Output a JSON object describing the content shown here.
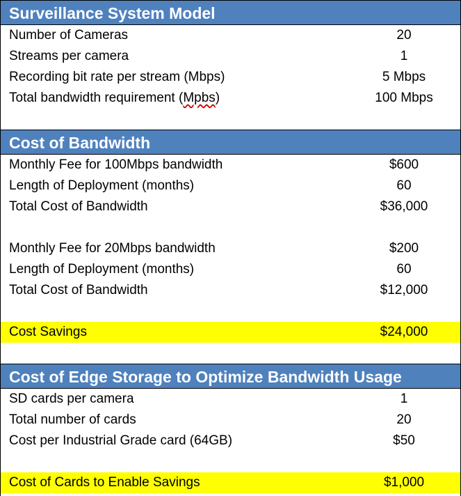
{
  "sections": {
    "model": {
      "title": "Surveillance System Model",
      "rows": [
        {
          "label": "Number of Cameras",
          "value": "20"
        },
        {
          "label": "Streams per camera",
          "value": "1"
        },
        {
          "label": "Recording bit rate per stream (Mbps)",
          "value": "5 Mbps"
        },
        {
          "label_prefix": "Total bandwidth requirement (",
          "label_flagged": "Mpbs",
          "label_suffix": ")",
          "value": "100 Mbps"
        }
      ]
    },
    "bandwidth": {
      "title": "Cost of Bandwidth",
      "group1": [
        {
          "label": "Monthly Fee for 100Mbps bandwidth",
          "value": "$600"
        },
        {
          "label": "Length of Deployment (months)",
          "value": "60"
        },
        {
          "label": "Total Cost of Bandwidth",
          "value": "$36,000"
        }
      ],
      "group2": [
        {
          "label": "Monthly Fee for 20Mbps bandwidth",
          "value": "$200"
        },
        {
          "label": "Length of Deployment (months)",
          "value": "60"
        },
        {
          "label": "Total Cost of Bandwidth",
          "value": "$12,000"
        }
      ],
      "savings": {
        "label": "Cost Savings",
        "value": "$24,000"
      }
    },
    "edge": {
      "title": "Cost of Edge Storage to Optimize Bandwidth Usage",
      "rows": [
        {
          "label": "SD cards per camera",
          "value": "1"
        },
        {
          "label": "Total number of cards",
          "value": "20"
        },
        {
          "label": "Cost per Industrial Grade card (64GB)",
          "value": "$50"
        }
      ],
      "total": {
        "label": "Cost of Cards to Enable Savings",
        "value": "$1,000"
      }
    }
  },
  "colors": {
    "header_bg": "#4f81bd",
    "header_text": "#ffffff",
    "highlight_bg": "#ffff00",
    "spellcheck_underline": "#d00000"
  }
}
